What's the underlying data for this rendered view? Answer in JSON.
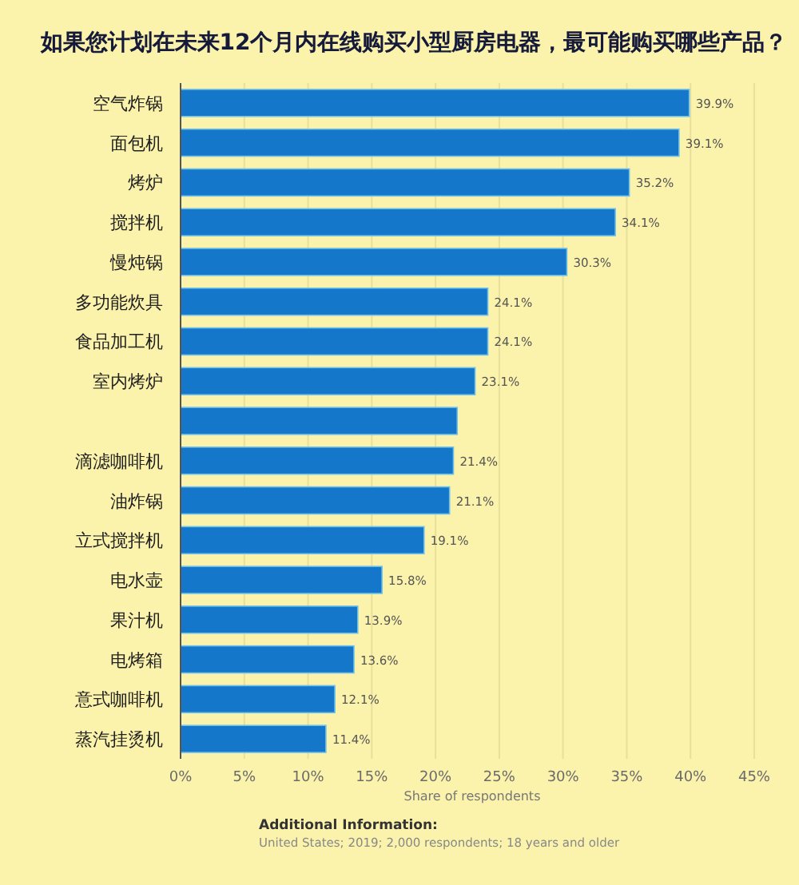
{
  "chart_data": {
    "type": "bar",
    "orientation": "horizontal",
    "title": "如果您计划在未来12个月内在线购买小型厨房电器，最可能购买哪些产品？",
    "xlabel": "Share of respondents",
    "categories": [
      "空气炸锅",
      "面包机",
      "烤炉",
      "搅拌机",
      "慢炖锅",
      "多功能炊具",
      "食品加工机",
      "室内烤炉",
      null,
      "滴滤咖啡机",
      "油炸锅",
      "立式搅拌机",
      "电水壶",
      "果汁机",
      "电烤箱",
      "意式咖啡机",
      "蒸汽挂烫机"
    ],
    "values": [
      39.9,
      39.1,
      35.2,
      34.1,
      30.3,
      24.1,
      24.1,
      23.1,
      21.7,
      21.4,
      21.1,
      19.1,
      15.8,
      13.9,
      13.6,
      12.1,
      11.4
    ],
    "value_labels": [
      "39.9%",
      "39.1%",
      "35.2%",
      "34.1%",
      "30.3%",
      "24.1%",
      "24.1%",
      "23.1%",
      null,
      "21.4%",
      "21.1%",
      "19.1%",
      "15.8%",
      "13.9%",
      "13.6%",
      "12.1%",
      "11.4%"
    ],
    "color": "#1577c9",
    "xlim": [
      0,
      45
    ],
    "xticks": [
      {
        "value": 0,
        "label": "0%"
      },
      {
        "value": 5,
        "label": "5%"
      },
      {
        "value": 10,
        "label": "10%"
      },
      {
        "value": 15,
        "label": "15%"
      },
      {
        "value": 20,
        "label": "20%"
      },
      {
        "value": 25,
        "label": "25%"
      },
      {
        "value": 30,
        "label": "30%"
      },
      {
        "value": 35,
        "label": "35%"
      },
      {
        "value": 40,
        "label": "40%"
      },
      {
        "value": 45,
        "label": "45%"
      }
    ],
    "grid": "x",
    "annotations": [
      "Additional Information:",
      "United States; 2019; 2,000 respondents; 18 years and older"
    ]
  }
}
